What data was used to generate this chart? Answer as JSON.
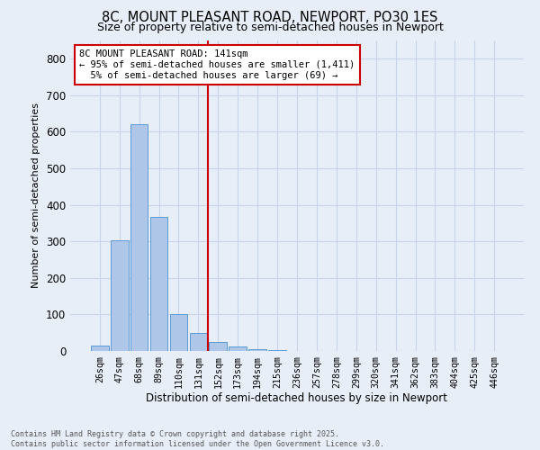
{
  "title_line1": "8C, MOUNT PLEASANT ROAD, NEWPORT, PO30 1ES",
  "title_line2": "Size of property relative to semi-detached houses in Newport",
  "xlabel": "Distribution of semi-detached houses by size in Newport",
  "ylabel": "Number of semi-detached properties",
  "bar_labels": [
    "26sqm",
    "47sqm",
    "68sqm",
    "89sqm",
    "110sqm",
    "131sqm",
    "152sqm",
    "173sqm",
    "194sqm",
    "215sqm",
    "236sqm",
    "257sqm",
    "278sqm",
    "299sqm",
    "320sqm",
    "341sqm",
    "362sqm",
    "383sqm",
    "404sqm",
    "425sqm",
    "446sqm"
  ],
  "bar_values": [
    15,
    303,
    621,
    367,
    100,
    50,
    25,
    12,
    5,
    2,
    0,
    0,
    0,
    0,
    0,
    0,
    0,
    0,
    0,
    0,
    0
  ],
  "bar_color": "#aec6e8",
  "bar_edge_color": "#5b9bd5",
  "ylim": [
    0,
    850
  ],
  "yticks": [
    0,
    100,
    200,
    300,
    400,
    500,
    600,
    700,
    800
  ],
  "vline_x": 6.0,
  "vline_color": "#cc0000",
  "annotation_title": "8C MOUNT PLEASANT ROAD: 141sqm",
  "annotation_line1": "← 95% of semi-detached houses are smaller (1,411)",
  "annotation_line2": "5% of semi-detached houses are larger (69) →",
  "annotation_box_color": "#cc0000",
  "grid_color": "#c8d4e8",
  "bg_color": "#e8eef8",
  "footnote1": "Contains HM Land Registry data © Crown copyright and database right 2025.",
  "footnote2": "Contains public sector information licensed under the Open Government Licence v3.0."
}
